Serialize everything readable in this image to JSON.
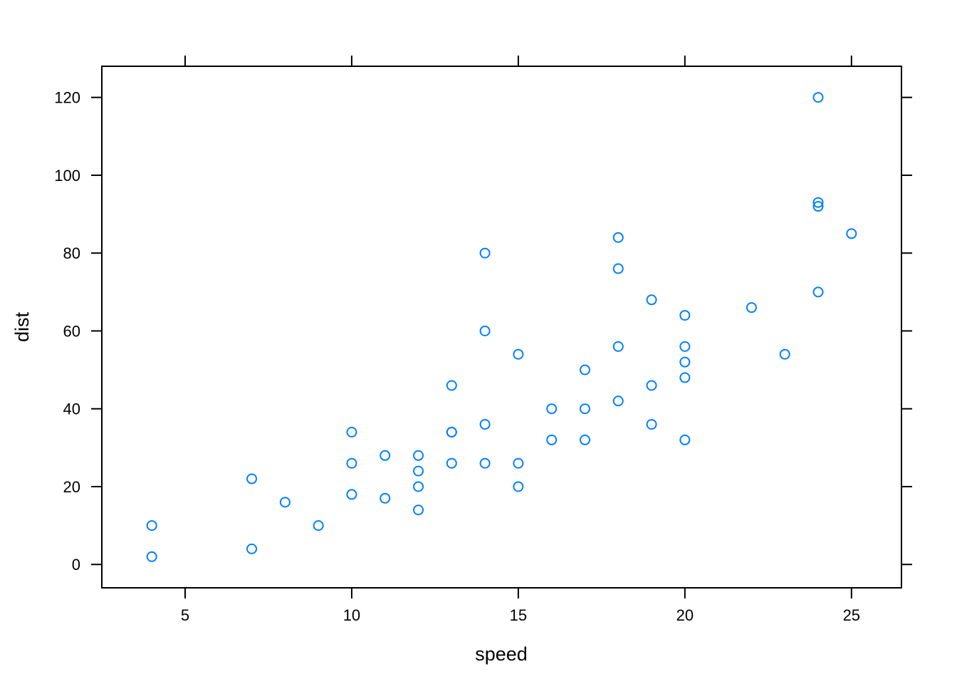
{
  "chart_data": {
    "type": "scatter",
    "xlabel": "speed",
    "ylabel": "dist",
    "xlim": [
      2.5,
      26.5
    ],
    "ylim": [
      -6,
      128
    ],
    "xticks": [
      5,
      10,
      15,
      20,
      25
    ],
    "yticks": [
      0,
      20,
      40,
      60,
      80,
      100,
      120
    ],
    "grid": false,
    "point_color": "#0080ff",
    "series": [
      {
        "points": [
          [
            4,
            2
          ],
          [
            4,
            10
          ],
          [
            7,
            4
          ],
          [
            7,
            22
          ],
          [
            8,
            16
          ],
          [
            9,
            10
          ],
          [
            10,
            18
          ],
          [
            10,
            26
          ],
          [
            10,
            34
          ],
          [
            11,
            17
          ],
          [
            11,
            28
          ],
          [
            12,
            14
          ],
          [
            12,
            20
          ],
          [
            12,
            24
          ],
          [
            12,
            28
          ],
          [
            13,
            26
          ],
          [
            13,
            34
          ],
          [
            13,
            34
          ],
          [
            13,
            46
          ],
          [
            14,
            26
          ],
          [
            14,
            36
          ],
          [
            14,
            60
          ],
          [
            14,
            80
          ],
          [
            15,
            20
          ],
          [
            15,
            26
          ],
          [
            15,
            54
          ],
          [
            16,
            32
          ],
          [
            16,
            40
          ],
          [
            17,
            32
          ],
          [
            17,
            40
          ],
          [
            17,
            50
          ],
          [
            18,
            42
          ],
          [
            18,
            56
          ],
          [
            18,
            76
          ],
          [
            18,
            84
          ],
          [
            19,
            36
          ],
          [
            19,
            46
          ],
          [
            19,
            68
          ],
          [
            20,
            32
          ],
          [
            20,
            48
          ],
          [
            20,
            52
          ],
          [
            20,
            56
          ],
          [
            20,
            64
          ],
          [
            22,
            66
          ],
          [
            23,
            54
          ],
          [
            24,
            70
          ],
          [
            24,
            92
          ],
          [
            24,
            93
          ],
          [
            24,
            120
          ],
          [
            25,
            85
          ]
        ]
      }
    ]
  }
}
